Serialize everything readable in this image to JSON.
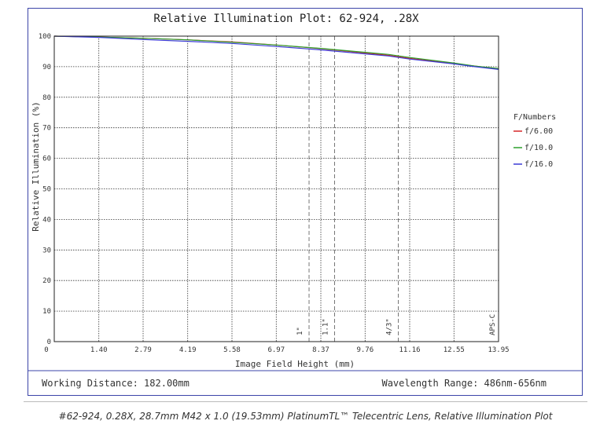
{
  "chart_data": {
    "type": "line",
    "title": "Relative Illumination Plot: 62-924, .28X",
    "xlabel": "Image Field Height (mm)",
    "ylabel": "Relative Illumination (%)",
    "xlim": [
      0,
      13.95
    ],
    "ylim": [
      0,
      100
    ],
    "x_ticks": [
      "0",
      "1.40",
      "2.79",
      "4.19",
      "5.58",
      "6.97",
      "8.37",
      "9.76",
      "11.16",
      "12.55",
      "13.95"
    ],
    "y_ticks": [
      "0",
      "10",
      "20",
      "30",
      "40",
      "50",
      "60",
      "70",
      "80",
      "90",
      "100"
    ],
    "grid": true,
    "legend_title": "F/Numbers",
    "legend_position": "right",
    "series": [
      {
        "name": "f/6.00",
        "color": "#d62728",
        "x": [
          0,
          1.4,
          2.79,
          4.19,
          5.58,
          6.97,
          8.37,
          9.76,
          10.5,
          11.16,
          12.55,
          13.2,
          13.95
        ],
        "y": [
          100,
          99.7,
          99.3,
          98.8,
          98.1,
          97.1,
          95.9,
          94.5,
          93.7,
          92.7,
          91.0,
          90.2,
          89.3
        ]
      },
      {
        "name": "f/10.0",
        "color": "#2ca02c",
        "x": [
          0,
          1.4,
          2.79,
          4.19,
          5.58,
          6.97,
          8.37,
          9.76,
          10.5,
          11.16,
          12.55,
          13.2,
          13.95
        ],
        "y": [
          100,
          99.7,
          99.3,
          98.8,
          98.0,
          97.1,
          96.0,
          94.7,
          94.0,
          93.0,
          91.2,
          90.2,
          89.4
        ]
      },
      {
        "name": "f/16.0",
        "color": "#3b3bd6",
        "x": [
          0,
          1.4,
          2.79,
          4.19,
          5.58,
          6.97,
          8.37,
          9.76,
          10.5,
          11.16,
          12.55,
          13.2,
          13.95
        ],
        "y": [
          100,
          99.6,
          98.9,
          98.3,
          97.6,
          96.6,
          95.5,
          94.2,
          93.5,
          92.5,
          90.9,
          90.0,
          89.1
        ]
      }
    ],
    "sensor_markers": [
      {
        "label": "1\"",
        "x": 8.0
      },
      {
        "label": "1.1\"",
        "x": 8.8
      },
      {
        "label": "4/3\"",
        "x": 10.8
      },
      {
        "label": "APS-C",
        "x": 13.95
      }
    ]
  },
  "footer": {
    "working_distance": "Working Distance: 182.00mm",
    "wavelength_range": "Wavelength Range: 486nm-656nm"
  },
  "caption": "#62-924, 0.28X, 28.7mm M42 x 1.0 (19.53mm) PlatinumTL™ Telecentric Lens, Relative Illumination Plot"
}
